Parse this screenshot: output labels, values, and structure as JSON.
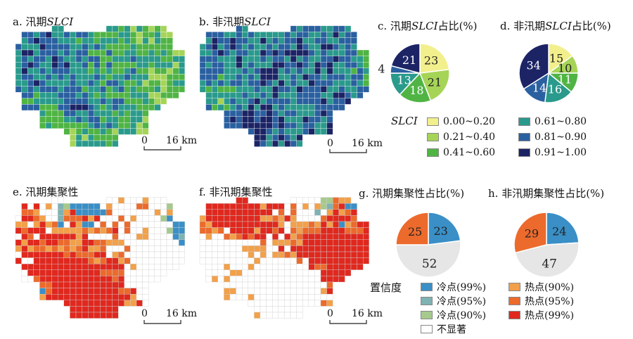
{
  "titles": {
    "a_prefix": "a. 汛期",
    "a_it": "SLCI",
    "b_prefix": "b. 非汛期",
    "b_it": "SLCI",
    "c_prefix": "c. 汛期",
    "c_it": "SLCI",
    "c_suffix": "占比(%)",
    "d_prefix": "d. 非汛期",
    "d_it": "SLCI",
    "d_suffix": "占比(%)",
    "e": "e. 汛期集聚性",
    "f": "f. 非汛期集聚性",
    "g": "g. 汛期集聚性占比(%)",
    "h": "h. 非汛期集聚性占比(%)"
  },
  "scalebar": {
    "zero": "0",
    "dist": "16 km"
  },
  "slci_legend": {
    "title": "SLCI",
    "items": [
      {
        "label": "0.00~0.20",
        "color": "#f2ef8d"
      },
      {
        "label": "0.21~0.40",
        "color": "#a6d456"
      },
      {
        "label": "0.41~0.60",
        "color": "#4fb444"
      },
      {
        "label": "0.61~0.80",
        "color": "#2a9a8c"
      },
      {
        "label": "0.81~0.90",
        "color": "#2a5fa0"
      },
      {
        "label": "0.91~1.00",
        "color": "#1c2466"
      }
    ]
  },
  "cluster_legend": {
    "title": "置信度",
    "items": [
      {
        "label": "冷点(99%)",
        "color": "#3a8fc7"
      },
      {
        "label": "冷点(95%)",
        "color": "#7fb2b3"
      },
      {
        "label": "冷点(90%)",
        "color": "#a6c98e"
      },
      {
        "label": "不显著",
        "color": "#ffffff"
      },
      {
        "label": "热点(90%)",
        "color": "#f2a14a"
      },
      {
        "label": "热点(95%)",
        "color": "#ec6a2c"
      },
      {
        "label": "热点(99%)",
        "color": "#e0281e"
      }
    ]
  },
  "chart_data": [
    {
      "type": "pie",
      "title": "c. 汛期SLCI占比(%)",
      "values": [
        23,
        21,
        18,
        13,
        4,
        21
      ],
      "labels": [
        "23",
        "21",
        "18",
        "13",
        "4",
        "21"
      ],
      "colors": [
        "#f2ef8d",
        "#a6d456",
        "#4fb444",
        "#2a9a8c",
        "#2a5fa0",
        "#1c2466"
      ]
    },
    {
      "type": "pie",
      "title": "d. 非汛期SLCI占比(%)",
      "values": [
        15,
        10,
        11,
        16,
        14,
        34
      ],
      "labels": [
        "15",
        "10",
        "11",
        "16",
        "14",
        "34"
      ],
      "colors": [
        "#f2ef8d",
        "#a6d456",
        "#4fb444",
        "#2a9a8c",
        "#2a5fa0",
        "#1c2466"
      ]
    },
    {
      "type": "pie",
      "title": "g. 汛期集聚性占比(%)",
      "values": [
        23,
        52,
        25
      ],
      "labels": [
        "23",
        "52",
        "25"
      ],
      "colors": [
        "#3a8fc7",
        "#e6e6e6",
        "#ec6a2c"
      ]
    },
    {
      "type": "pie",
      "title": "h. 非汛期集聚性占比(%)",
      "values": [
        24,
        47,
        29
      ],
      "labels": [
        "24",
        "47",
        "29"
      ],
      "colors": [
        "#3a8fc7",
        "#e6e6e6",
        "#ec6a2c"
      ]
    }
  ]
}
